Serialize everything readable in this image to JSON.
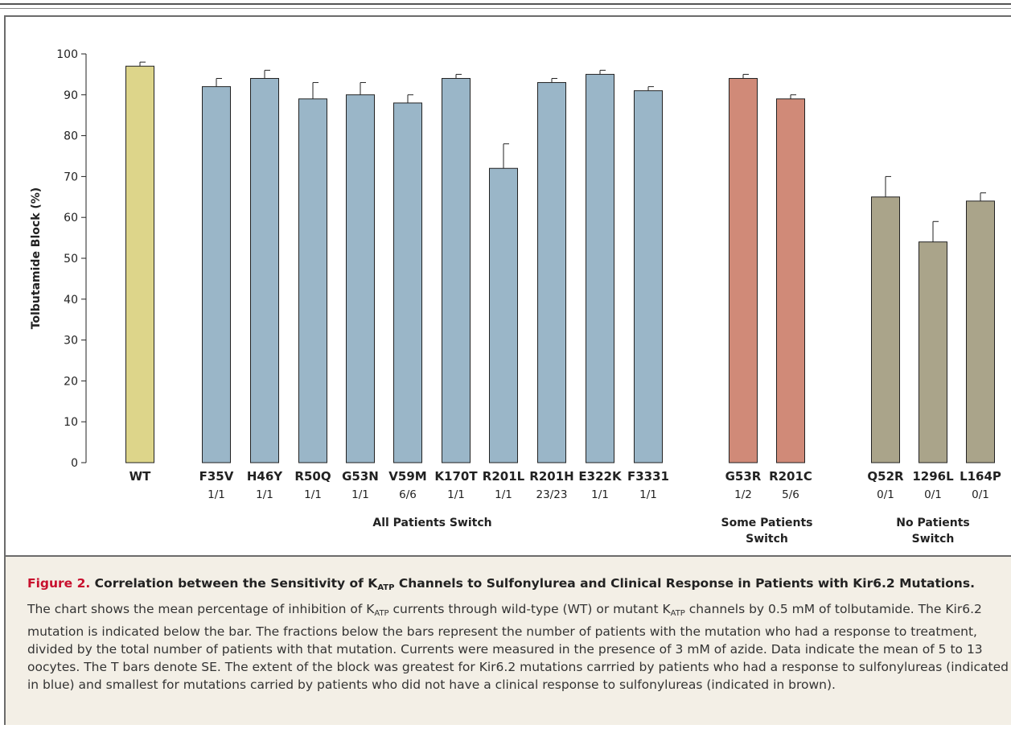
{
  "chart_data": {
    "type": "bar",
    "ylabel": "Tolbutamide Block (%)",
    "ylim": [
      0,
      100
    ],
    "yticks": [
      0,
      10,
      20,
      30,
      40,
      50,
      60,
      70,
      80,
      90,
      100
    ],
    "categories": [
      "WT",
      "F35V",
      "H46Y",
      "R50Q",
      "G53N",
      "V59M",
      "K170T",
      "R201L",
      "R201H",
      "E322K",
      "F3331",
      "G53R",
      "R201C",
      "Q52R",
      "1296L",
      "L164P"
    ],
    "values": [
      97,
      92,
      94,
      89,
      90,
      88,
      94,
      72,
      93,
      95,
      91,
      94,
      89,
      65,
      54,
      64
    ],
    "errors": [
      1,
      2,
      2,
      4,
      3,
      2,
      1,
      6,
      1,
      1,
      1,
      1,
      1,
      5,
      5,
      2
    ],
    "fractions": [
      "",
      "1/1",
      "1/1",
      "1/1",
      "1/1",
      "6/6",
      "1/1",
      "1/1",
      "23/23",
      "1/1",
      "1/1",
      "1/2",
      "5/6",
      "0/1",
      "0/1",
      "0/1"
    ],
    "groups": [
      {
        "label_lines": [
          "All Patients Switch"
        ],
        "color": "#9ab6c8",
        "start": 1,
        "end": 10
      },
      {
        "label_lines": [
          "Some Patients",
          "Switch"
        ],
        "color": "#d08a78",
        "start": 11,
        "end": 12
      },
      {
        "label_lines": [
          "No Patients",
          "Switch"
        ],
        "color": "#aaa48a",
        "start": 13,
        "end": 15
      }
    ],
    "wt_color": "#ddd58a"
  },
  "caption": {
    "figure_label": "Figure 2.",
    "title_pre": "Correlation between the Sensitivity of K",
    "title_sub": "ATP",
    "title_post": " Channels to Sulfonylurea and Clinical Response in Patients with Kir6.2 Mutations.",
    "body_1": "The chart shows the mean percentage of inhibition of K",
    "body_sub_1": "ATP",
    "body_2": " currents through wild-type (WT) or mutant K",
    "body_sub_2": "ATP",
    "body_3": " channels by 0.5 mM of tolbutamide. The Kir6.2 mutation is indicated below the bar. The fractions below the bars represent the number of patients with the mutation who had a response to treatment, divided by the total number of patients with that mutation. Currents were measured in the presence of 3 mM of azide. Data indicate the mean of 5 to 13 oocytes. The T bars denote SE. The extent of the block was greatest for Kir6.2 mutations carrried by patients who had a response to sulfonylureas (indicated in blue) and smallest for mutations carried by patients who did not have a clinical response to sulfonylureas (indicated in brown)."
  }
}
